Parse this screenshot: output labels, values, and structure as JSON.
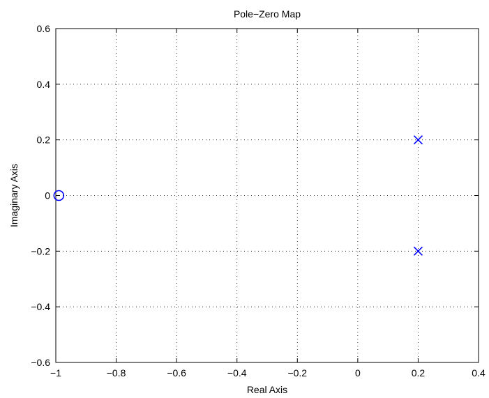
{
  "chart_data": {
    "type": "scatter",
    "title": "Pole−Zero Map",
    "xlabel": "Real Axis",
    "ylabel": "Imaginary Axis",
    "xlim": [
      -1,
      0.4
    ],
    "ylim": [
      -0.6,
      0.6
    ],
    "xticks": [
      -1,
      -0.8,
      -0.6,
      -0.4,
      -0.2,
      0,
      0.2,
      0.4
    ],
    "yticks": [
      -0.6,
      -0.4,
      -0.2,
      0,
      0.2,
      0.4,
      0.6
    ],
    "xtick_labels": [
      "−1",
      "−0.8",
      "−0.6",
      "−0.4",
      "−0.2",
      "0",
      "0.2",
      "0.4"
    ],
    "ytick_labels": [
      "−0.6",
      "−0.4",
      "−0.2",
      "0",
      "0.2",
      "0.4",
      "0.6"
    ],
    "grid": true,
    "grid_style": "dotted",
    "series": [
      {
        "marker": "x",
        "color": "#0000ff",
        "points": [
          [
            0.2,
            0.2
          ],
          [
            0.2,
            -0.2
          ]
        ]
      },
      {
        "marker": "o",
        "color": "#0000ff",
        "points": [
          [
            -0.99,
            0
          ]
        ]
      }
    ]
  }
}
